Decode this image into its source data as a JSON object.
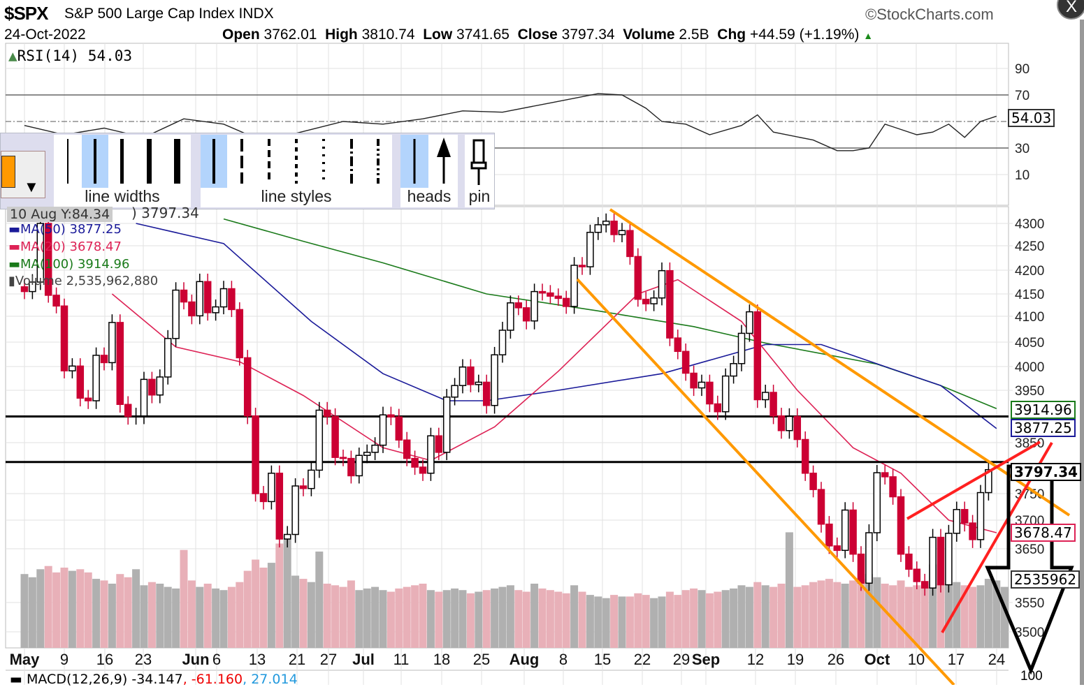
{
  "header": {
    "symbol": "$SPX",
    "name": "S&P 500 Large Cap Index",
    "exchange": "INDX",
    "date": "24-Oct-2022",
    "open_label": "Open",
    "open": "3762.01",
    "high_label": "High",
    "high": "3810.74",
    "low_label": "Low",
    "low": "3741.65",
    "close_label": "Close",
    "close": "3797.34",
    "volume_label": "Volume",
    "volume": "2.5B",
    "chg_label": "Chg",
    "chg": "+44.59 (+1.19%)",
    "brand": "©StockCharts.com",
    "close_icon": "X"
  },
  "colors": {
    "up": "#000000",
    "down": "#cc0033",
    "ma50": "#1a1a99",
    "ma20": "#dd2255",
    "ma100": "#1a7a1a",
    "vol_up": "#b0b0b0",
    "vol_down": "#e8b0b8",
    "channel": "#ff9900",
    "wedge": "#ff2020",
    "accent": "#ff9900"
  },
  "toolbar": {
    "line_widths": "line widths",
    "line_styles": "line styles",
    "heads": "heads",
    "pin": "pin",
    "dropdown_icon": "▼"
  },
  "legend": {
    "rsi": "RSI(14) 54.03",
    "hover": "10 Aug Y:84.34",
    "hover_close": ") 3797.34",
    "ma50": "MA(50) 3877.25",
    "ma20": "MA(20) 3678.47",
    "ma100": "MA(100) 3914.96",
    "volume": "Volume 2,535,962,880",
    "macd": "MACD(12,26,9) -34.147",
    "macd_signal": ", -61.160",
    "macd_hist": ", 27.014"
  },
  "tags": {
    "rsi": "54.03",
    "ma100": "3914.96",
    "ma50": "3877.25",
    "close": "3797.34",
    "ma20": "3678.47",
    "volume": "2535962",
    "macd_axis": "100"
  },
  "chart_data": {
    "type": "candlestick",
    "title": "$SPX S&P 500 Large Cap Index",
    "date_labels": [
      [
        "May",
        true
      ],
      [
        "9",
        false
      ],
      [
        "16",
        false
      ],
      [
        "23",
        false
      ],
      [
        "Jun",
        true
      ],
      [
        "6",
        false
      ],
      [
        "13",
        false
      ],
      [
        "21",
        false
      ],
      [
        "27",
        false
      ],
      [
        "Jul",
        true
      ],
      [
        "11",
        false
      ],
      [
        "18",
        false
      ],
      [
        "25",
        false
      ],
      [
        "Aug",
        true
      ],
      [
        "8",
        false
      ],
      [
        "15",
        false
      ],
      [
        "22",
        false
      ],
      [
        "29",
        false
      ],
      [
        "Sep",
        true
      ],
      [
        "12",
        false
      ],
      [
        "19",
        false
      ],
      [
        "26",
        false
      ],
      [
        "Oct",
        true
      ],
      [
        "10",
        false
      ],
      [
        "17",
        false
      ],
      [
        "24",
        false
      ]
    ],
    "price_ticks": [
      "4300",
      "4250",
      "4200",
      "4150",
      "4100",
      "4050",
      "4000",
      "3950",
      "3850",
      "3750",
      "3700",
      "3650",
      "3550",
      "3500"
    ],
    "rsi_ticks": [
      "90",
      "70",
      "30",
      "10"
    ],
    "closes": [
      4155,
      4175,
      4300,
      4147,
      4123,
      3991,
      4001,
      3935,
      3930,
      4023,
      4008,
      4088,
      3923,
      3900,
      3901,
      3973,
      3941,
      3978,
      4057,
      4158,
      4132,
      4101,
      4176,
      4108,
      4121,
      4161,
      4115,
      4018,
      3901,
      3750,
      3735,
      3790,
      3667,
      3675,
      3765,
      3760,
      3796,
      3912,
      3900,
      3821,
      3819,
      3785,
      3825,
      3831,
      3845,
      3903,
      3899,
      3855,
      3819,
      3802,
      3790,
      3863,
      3831,
      3937,
      3960,
      3999,
      3962,
      3967,
      3921,
      4024,
      4073,
      4130,
      4119,
      4091,
      4155,
      4152,
      4145,
      4140,
      4122,
      4210,
      4207,
      4280,
      4297,
      4305,
      4275,
      4284,
      4228,
      4138,
      4128,
      4141,
      4199,
      4058,
      4031,
      3986,
      3955,
      3967,
      3924,
      3909,
      3980,
      4006,
      4067,
      4110,
      3932,
      3946,
      3901,
      3873,
      3900,
      3856,
      3790,
      3758,
      3693,
      3655,
      3647,
      3719,
      3640,
      3586,
      3678,
      3791,
      3783,
      3744,
      3640,
      3612,
      3589,
      3577,
      3670,
      3583,
      3677,
      3720,
      3695,
      3666,
      3752,
      3797
    ],
    "volume_billions": [
      4.6,
      4.4,
      4.9,
      5.1,
      4.7,
      5.0,
      4.8,
      4.9,
      4.7,
      4.3,
      4.2,
      4.0,
      4.6,
      4.4,
      4.9,
      3.9,
      4.1,
      4.0,
      3.8,
      3.7,
      6.1,
      4.2,
      3.8,
      4.0,
      3.7,
      3.6,
      3.8,
      4.1,
      4.8,
      5.5,
      5.0,
      5.3,
      6.5,
      7.0,
      4.5,
      4.3,
      4.1,
      6.0,
      4.0,
      3.9,
      3.8,
      4.2,
      3.6,
      3.7,
      3.8,
      3.6,
      3.5,
      3.7,
      3.8,
      3.9,
      4.0,
      3.6,
      3.5,
      3.6,
      3.7,
      3.6,
      3.4,
      3.5,
      3.6,
      3.7,
      3.8,
      3.9,
      3.6,
      3.5,
      4.0,
      3.7,
      3.6,
      3.5,
      3.4,
      3.9,
      3.5,
      3.3,
      3.2,
      3.1,
      3.3,
      3.2,
      3.2,
      3.4,
      3.3,
      3.1,
      3.2,
      3.5,
      3.3,
      3.6,
      3.7,
      3.6,
      3.4,
      3.5,
      3.6,
      3.7,
      3.9,
      3.8,
      4.1,
      3.9,
      3.8,
      4.0,
      7.2,
      3.8,
      3.9,
      4.1,
      4.2,
      4.3,
      4.1,
      4.0,
      4.2,
      4.3,
      4.6,
      4.4,
      4.0,
      3.9,
      4.2,
      3.8,
      3.9,
      3.8,
      5.2,
      4.0,
      4.0,
      4.1,
      3.9,
      3.8,
      3.9,
      4.3,
      4.2,
      3.8
    ],
    "ma50": [
      [
        14,
        4300
      ],
      [
        25,
        4255
      ],
      [
        36,
        4090
      ],
      [
        45,
        3985
      ],
      [
        53,
        3930
      ],
      [
        58,
        3930
      ],
      [
        67,
        3950
      ],
      [
        80,
        3985
      ],
      [
        93,
        4045
      ],
      [
        100,
        4045
      ],
      [
        108,
        4000
      ],
      [
        115,
        3960
      ],
      [
        122,
        3877
      ]
    ],
    "ma20": [
      [
        11,
        4150
      ],
      [
        19,
        4040
      ],
      [
        27,
        4010
      ],
      [
        35,
        3940
      ],
      [
        45,
        3840
      ],
      [
        51,
        3815
      ],
      [
        59,
        3880
      ],
      [
        67,
        3990
      ],
      [
        77,
        4150
      ],
      [
        82,
        4180
      ],
      [
        90,
        4090
      ],
      [
        97,
        3950
      ],
      [
        104,
        3840
      ],
      [
        110,
        3790
      ],
      [
        116,
        3700
      ],
      [
        122,
        3678
      ]
    ],
    "ma100": [
      [
        25,
        4310
      ],
      [
        35,
        4260
      ],
      [
        45,
        4215
      ],
      [
        58,
        4150
      ],
      [
        72,
        4112
      ],
      [
        84,
        4080
      ],
      [
        93,
        4048
      ],
      [
        107,
        4005
      ],
      [
        115,
        3960
      ],
      [
        122,
        3915
      ]
    ],
    "rsi": [
      [
        0,
        47
      ],
      [
        5,
        40
      ],
      [
        10,
        45
      ],
      [
        15,
        38
      ],
      [
        20,
        52
      ],
      [
        25,
        48
      ],
      [
        30,
        35
      ],
      [
        36,
        44
      ],
      [
        40,
        50
      ],
      [
        45,
        48
      ],
      [
        50,
        52
      ],
      [
        55,
        58
      ],
      [
        60,
        57
      ],
      [
        66,
        64
      ],
      [
        72,
        71
      ],
      [
        75,
        70
      ],
      [
        78,
        60
      ],
      [
        80,
        50
      ],
      [
        83,
        48
      ],
      [
        86,
        40
      ],
      [
        90,
        47
      ],
      [
        92,
        55
      ],
      [
        94,
        42
      ],
      [
        99,
        36
      ],
      [
        102,
        28
      ],
      [
        104,
        28
      ],
      [
        106,
        30
      ],
      [
        108,
        48
      ],
      [
        112,
        40
      ],
      [
        114,
        42
      ],
      [
        116,
        48
      ],
      [
        118,
        38
      ],
      [
        120,
        50
      ],
      [
        122,
        54
      ]
    ],
    "horizontal_lines": [
      3900,
      3812
    ],
    "rsi_levels": [
      70,
      30
    ]
  }
}
